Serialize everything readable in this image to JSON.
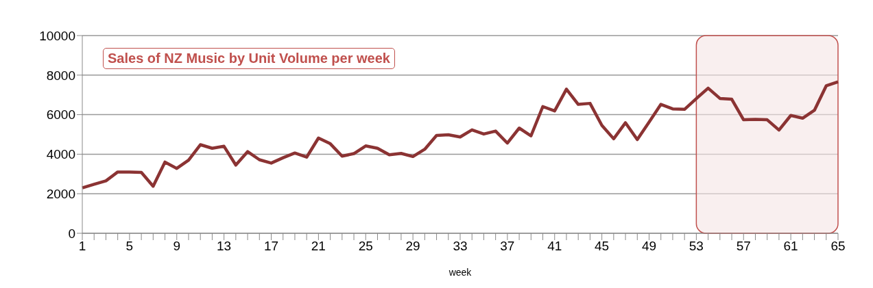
{
  "chart_data": {
    "type": "line",
    "title": "Sales of NZ Music by Unit Volume per week",
    "xlabel": "week",
    "categories": [
      "1",
      null,
      null,
      null,
      "5",
      null,
      null,
      null,
      "9",
      null,
      null,
      null,
      "13",
      null,
      null,
      null,
      "17",
      null,
      null,
      null,
      "21",
      null,
      null,
      null,
      "25",
      null,
      null,
      null,
      "29",
      null,
      null,
      null,
      "33",
      null,
      null,
      null,
      "37",
      null,
      null,
      null,
      "41",
      null,
      null,
      null,
      "45",
      null,
      null,
      null,
      "49",
      null,
      null,
      null,
      "53",
      null,
      null,
      null,
      "57",
      null,
      null,
      null,
      "61",
      null,
      null,
      null,
      "65"
    ],
    "series": [
      {
        "color": "#8b3333",
        "values": [
          2300,
          2480,
          2650,
          3100,
          3100,
          3080,
          2380,
          3600,
          3280,
          3700,
          4480,
          4300,
          4400,
          3450,
          4130,
          3720,
          3550,
          3820,
          4060,
          3850,
          4820,
          4530,
          3900,
          4030,
          4420,
          4300,
          3970,
          4040,
          3880,
          4250,
          4950,
          4980,
          4870,
          5230,
          5020,
          5170,
          4560,
          5320,
          4930,
          6410,
          6190,
          7290,
          6520,
          6570,
          5460,
          4780,
          5590,
          4740,
          5620,
          6520,
          6290,
          6270,
          6810,
          7340,
          6820,
          6780,
          5740,
          5760,
          5740,
          5220,
          5960,
          5820,
          6220,
          7460,
          7660
        ]
      }
    ],
    "ylim": [
      0,
      10000
    ],
    "yticks": [
      0,
      2000,
      4000,
      6000,
      8000,
      10000
    ],
    "grid": "y",
    "marker": "none",
    "line_style": "solid",
    "legend": false,
    "bands": [
      {
        "axis": "x",
        "from": "53",
        "to": "65",
        "color": "#f5e4e4"
      }
    ]
  }
}
